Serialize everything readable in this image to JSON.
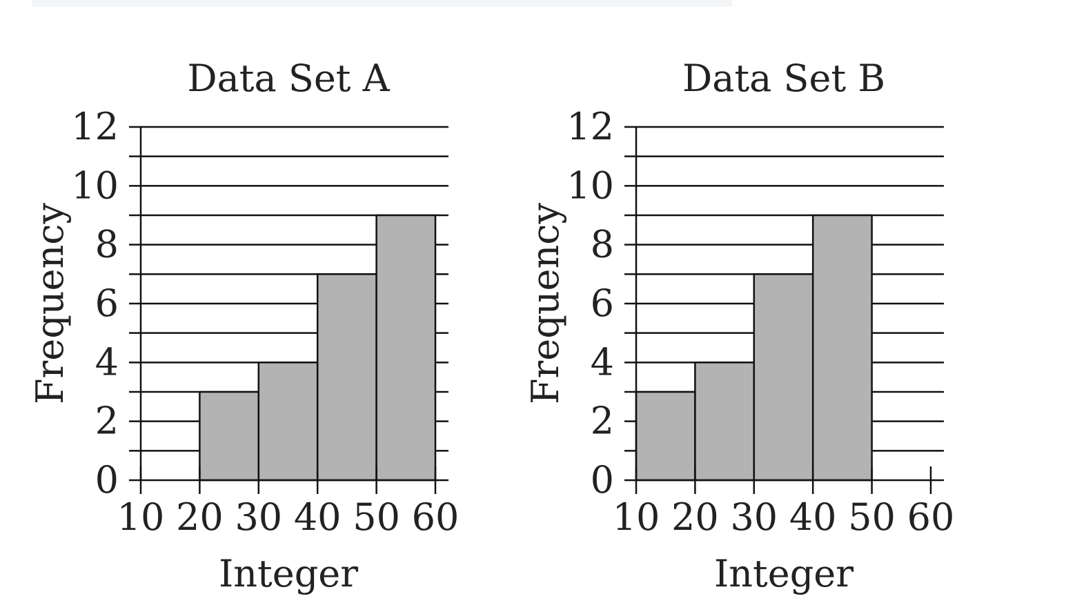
{
  "chart_data": [
    {
      "type": "bar",
      "title": "Data Set A",
      "xlabel": "Integer",
      "ylabel": "Frequency",
      "x_ticks": [
        10,
        20,
        30,
        40,
        50,
        60
      ],
      "y_ticks": [
        0,
        2,
        4,
        6,
        8,
        10,
        12
      ],
      "xlim": [
        10,
        60
      ],
      "ylim": [
        0,
        12
      ],
      "grid": true,
      "bins": [
        {
          "from": 10,
          "to": 20,
          "value": 0
        },
        {
          "from": 20,
          "to": 30,
          "value": 3
        },
        {
          "from": 30,
          "to": 40,
          "value": 4
        },
        {
          "from": 40,
          "to": 50,
          "value": 7
        },
        {
          "from": 50,
          "to": 60,
          "value": 9
        }
      ]
    },
    {
      "type": "bar",
      "title": "Data Set B",
      "xlabel": "Integer",
      "ylabel": "Frequency",
      "x_ticks": [
        10,
        20,
        30,
        40,
        50,
        60
      ],
      "y_ticks": [
        0,
        2,
        4,
        6,
        8,
        10,
        12
      ],
      "xlim": [
        10,
        60
      ],
      "ylim": [
        0,
        12
      ],
      "grid": true,
      "bins": [
        {
          "from": 10,
          "to": 20,
          "value": 3
        },
        {
          "from": 20,
          "to": 30,
          "value": 4
        },
        {
          "from": 30,
          "to": 40,
          "value": 7
        },
        {
          "from": 40,
          "to": 50,
          "value": 9
        },
        {
          "from": 50,
          "to": 60,
          "value": 0
        }
      ]
    }
  ],
  "colors": {
    "bar_fill": "#b3b3b3",
    "line": "#111111",
    "text": "#222222"
  }
}
